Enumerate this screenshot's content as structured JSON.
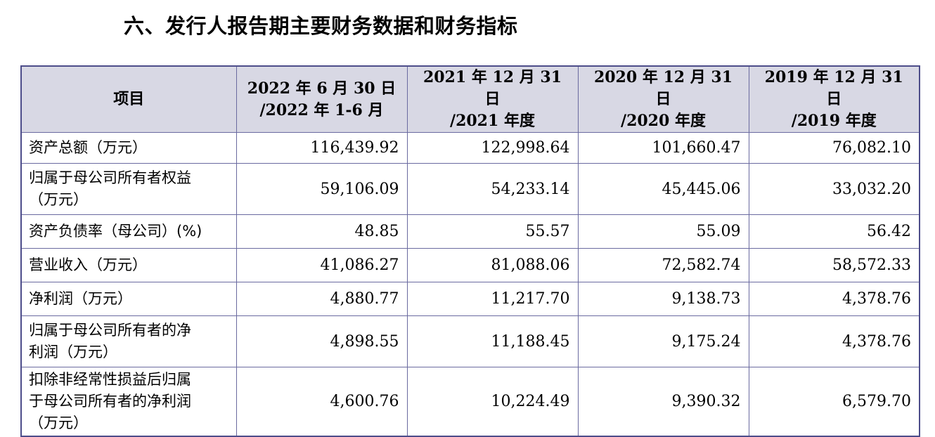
{
  "heading": "六、发行人报告期主要财务数据和财务指标",
  "table": {
    "headers": [
      [
        "项目"
      ],
      [
        "2022 年 6 月 30 日",
        "/2022 年 1-6 月"
      ],
      [
        "2021 年 12 月 31 日",
        "/2021 年度"
      ],
      [
        "2020 年 12 月 31 日",
        "/2020 年度"
      ],
      [
        "2019 年 12 月 31 日",
        "/2019 年度"
      ]
    ],
    "rows": [
      {
        "label": [
          "资产总额（万元）"
        ],
        "values": [
          "116,439.92",
          "122,998.64",
          "101,660.47",
          "76,082.10"
        ]
      },
      {
        "label": [
          "归属于母公司所有者权益",
          "（万元）"
        ],
        "values": [
          "59,106.09",
          "54,233.14",
          "45,445.06",
          "33,032.20"
        ]
      },
      {
        "label": [
          "资产负债率（母公司）(%)"
        ],
        "values": [
          "48.85",
          "55.57",
          "55.09",
          "56.42"
        ]
      },
      {
        "label": [
          "营业收入（万元）"
        ],
        "values": [
          "41,086.27",
          "81,088.06",
          "72,582.74",
          "58,572.33"
        ]
      },
      {
        "label": [
          "净利润（万元）"
        ],
        "values": [
          "4,880.77",
          "11,217.70",
          "9,138.73",
          "4,378.76"
        ]
      },
      {
        "label": [
          "归属于母公司所有者的净",
          "利润（万元）"
        ],
        "values": [
          "4,898.55",
          "11,188.45",
          "9,175.24",
          "4,378.76"
        ]
      },
      {
        "label": [
          "扣除非经常性损益后归属",
          "于母公司所有者的净利润",
          "（万元）"
        ],
        "values": [
          "4,600.76",
          "10,224.49",
          "9,390.32",
          "6,579.70"
        ]
      }
    ]
  }
}
